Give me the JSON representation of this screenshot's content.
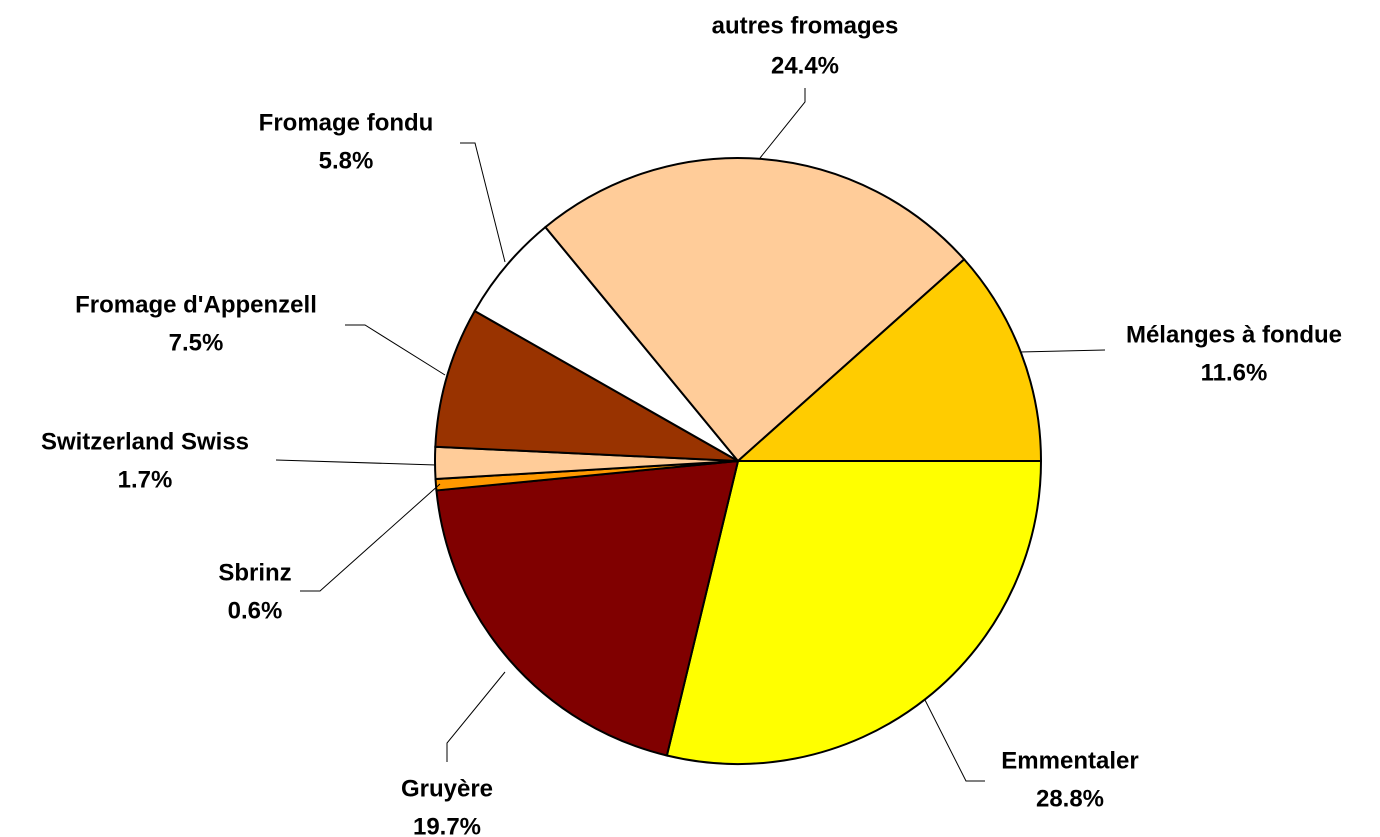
{
  "chart_data": {
    "type": "pie",
    "categories": [
      "Emmentaler",
      "Gruyère",
      "Sbrinz",
      "Switzerland Swiss",
      "Fromage d'Appenzell",
      "Fromage fondu",
      "autres fromages",
      "Mélanges à fondue"
    ],
    "values": [
      28.8,
      19.7,
      0.6,
      1.7,
      7.5,
      5.8,
      24.4,
      11.6
    ],
    "value_labels": [
      "28.8%",
      "19.7%",
      "0.6%",
      "1.7%",
      "7.5%",
      "5.8%",
      "24.4%",
      "11.6%"
    ],
    "colors": [
      "#ffff00",
      "#800000",
      "#ff9900",
      "#ffcc99",
      "#993300",
      "#ffffff",
      "#ffcc99",
      "#ffcc00"
    ]
  }
}
